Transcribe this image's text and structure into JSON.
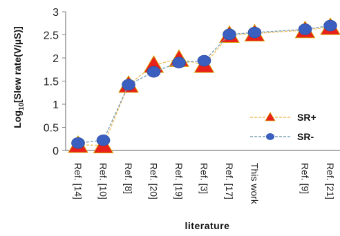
{
  "chart_data": {
    "type": "line",
    "ylabel_prefix": "Log",
    "ylabel_sub": "10",
    "ylabel_rest": "[Slew rate(V/µS)]",
    "xlabel": "literature",
    "ylim": [
      0,
      3
    ],
    "yticks": [
      "0",
      "0.5",
      "1",
      "1.5",
      "2",
      "2.5",
      "3"
    ],
    "legend_position": "bottom-right",
    "categories": [
      "Ref. [14]",
      "Ref. [10]",
      "Ref. [8]",
      "Ref. [20]",
      "Ref. [19]",
      "Ref. [3]",
      "Ref. [17]",
      "This work",
      "Ref. [9]",
      "Ref. [21]"
    ],
    "x_index": [
      0,
      1,
      2,
      3,
      4,
      5,
      6,
      7,
      9,
      10
    ],
    "series": [
      {
        "name": "SR+",
        "marker": "triangle",
        "color": "#e8221a",
        "line_color": "#f2c060",
        "values": [
          0.12,
          0.11,
          1.42,
          1.85,
          1.98,
          1.85,
          2.5,
          2.53,
          2.6,
          2.67
        ]
      },
      {
        "name": "SR-",
        "marker": "circle",
        "color": "#3a5fbf",
        "line_color": "#7fa3b5",
        "values": [
          0.16,
          0.22,
          1.42,
          1.7,
          1.9,
          1.94,
          2.51,
          2.55,
          2.62,
          2.7
        ]
      }
    ]
  }
}
